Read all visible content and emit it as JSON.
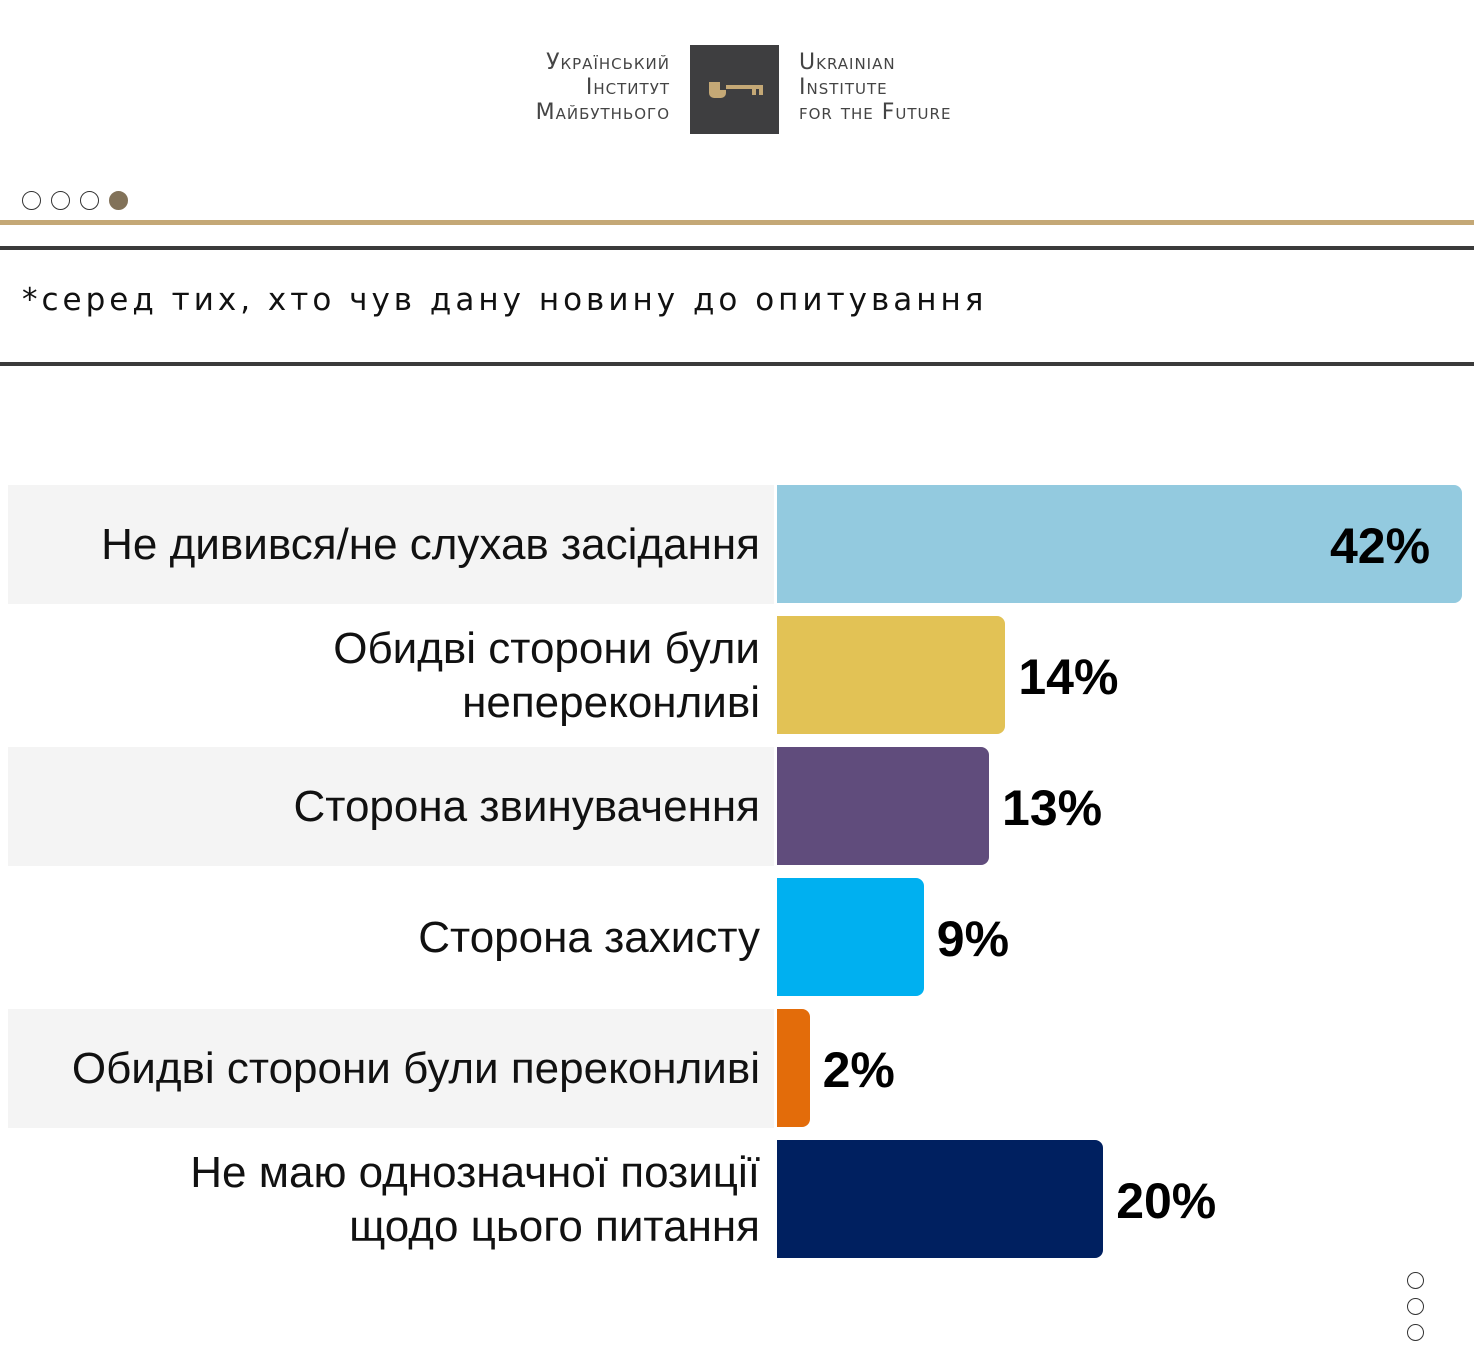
{
  "logo": {
    "ua_lines": [
      "Український",
      "Інститут",
      "Майбутнього"
    ],
    "en_lines": [
      "Ukrainian",
      "Institute",
      "for the Future"
    ],
    "icon": "key-icon",
    "accent": "#c4a876"
  },
  "pagination": {
    "total": 4,
    "active": 4
  },
  "note": "*серед тих, хто чув дану новину до опитування",
  "chart_data": {
    "type": "bar",
    "orientation": "horizontal",
    "categories": [
      "Не дивився/не слухав засідання",
      "Обидві сторони були непереконливі",
      "Сторона звинувачення",
      "Сторона захисту",
      "Обидві сторони були переконливі",
      "Не маю однозначної позиції щодо цього питання"
    ],
    "values": [
      42,
      14,
      13,
      9,
      2,
      20
    ],
    "labels": [
      "42%",
      "14%",
      "13%",
      "9%",
      "2%",
      "20%"
    ],
    "colors": [
      "#93cadf",
      "#e2c255",
      "#604c7c",
      "#00b0f0",
      "#e36c0a",
      "#002060"
    ],
    "xlim": [
      0,
      42
    ],
    "title": "",
    "xlabel": "",
    "ylabel": "",
    "grid": false
  }
}
